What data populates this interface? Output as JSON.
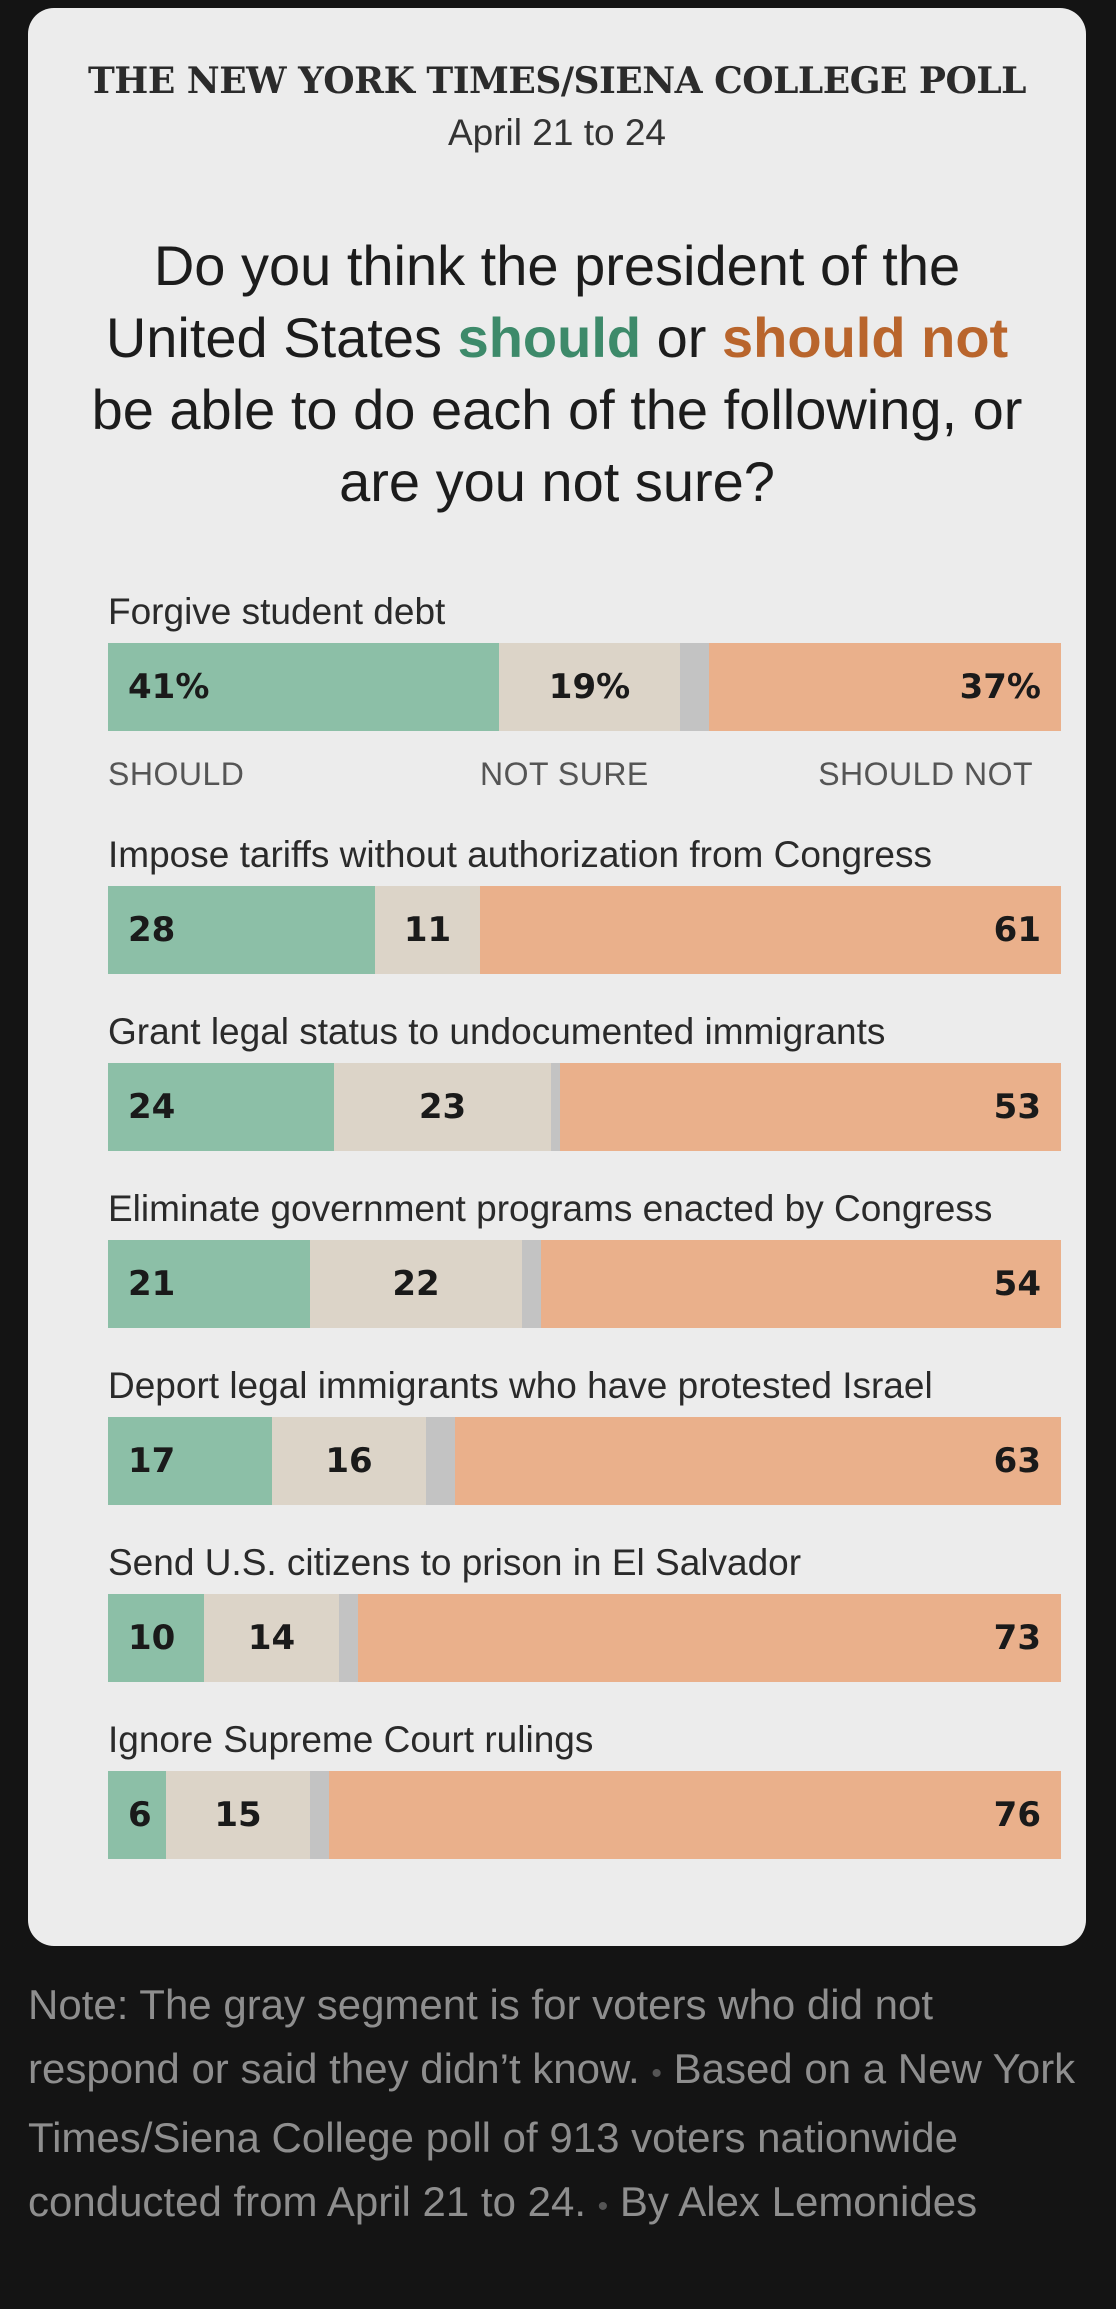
{
  "header": {
    "kicker": "THE NEW YORK TIMES/SIENA COLLEGE POLL",
    "dates": "April 21 to 24"
  },
  "question": {
    "part1": "Do you think the president of the United States ",
    "should": "should",
    "part2": " or ",
    "should_not": "should not",
    "part3": " be able to do each of the following, or are you not sure?"
  },
  "legend": {
    "should": "SHOULD",
    "not_sure": "NOT SURE",
    "should_not": "SHOULD NOT"
  },
  "colors": {
    "should": "#8cbfa7",
    "not_sure": "#dcd4c8",
    "no_response": "#c3c3c3",
    "should_not": "#eab08b",
    "should_text": "#3d8a6a",
    "should_not_text": "#b9652c"
  },
  "chart_data": {
    "type": "bar",
    "stacked": true,
    "orientation": "horizontal",
    "categories": [
      "Forgive student debt",
      "Impose tariffs without authorization from Congress",
      "Grant legal status to undocumented immigrants",
      "Eliminate government programs enacted by Congress",
      "Deport legal immigrants who have protested Israel",
      "Send U.S. citizens to prison in El Salvador",
      "Ignore Supreme Court rulings"
    ],
    "series": [
      {
        "name": "SHOULD",
        "values": [
          41,
          28,
          24,
          21,
          17,
          10,
          6
        ]
      },
      {
        "name": "NOT SURE",
        "values": [
          19,
          11,
          23,
          22,
          16,
          14,
          15
        ]
      },
      {
        "values": [
          3,
          0,
          1,
          2,
          3,
          2,
          2
        ]
      },
      {
        "name": "SHOULD NOT",
        "values": [
          37,
          61,
          53,
          54,
          63,
          73,
          76
        ]
      }
    ],
    "value_labels": [
      [
        "41%",
        "19%",
        "37%"
      ],
      [
        "28",
        "11",
        "61"
      ],
      [
        "24",
        "23",
        "53"
      ],
      [
        "21",
        "22",
        "54"
      ],
      [
        "17",
        "16",
        "63"
      ],
      [
        "10",
        "14",
        "73"
      ],
      [
        "6",
        "15",
        "76"
      ]
    ]
  },
  "footer": {
    "note": "Note: The gray segment is for voters who did not respond or said they didn’t know.",
    "separator": "•",
    "source": "Based on a New York Times/Siena College poll of 913 voters nationwide conducted from April 21 to 24.",
    "byline": "By Alex Lemonides"
  }
}
